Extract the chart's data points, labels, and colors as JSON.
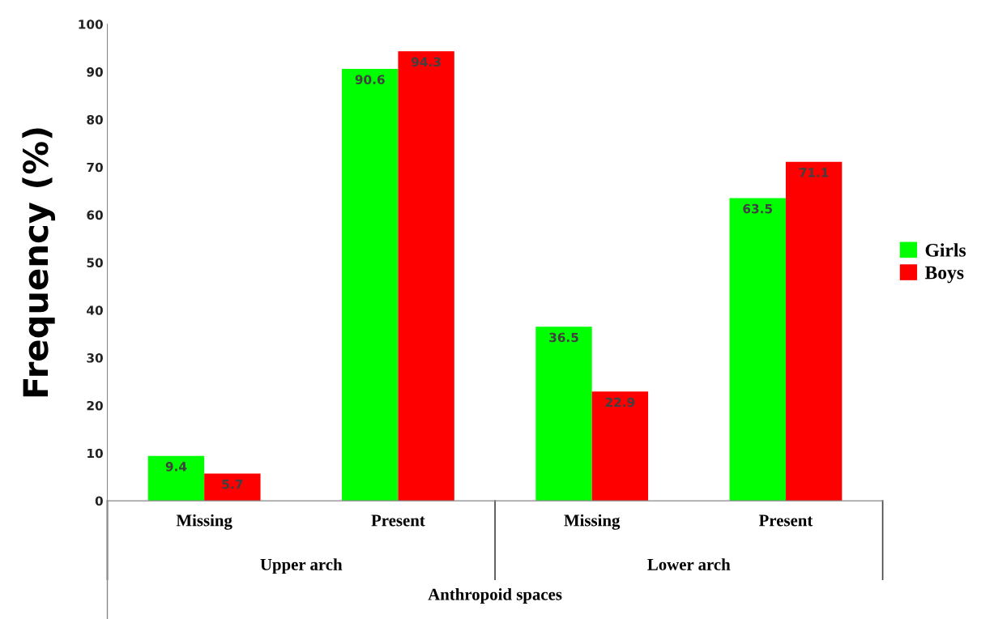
{
  "chart_data": {
    "type": "bar",
    "xlabel": "Anthropoid spaces",
    "ylabel": "Frequency (%)",
    "categories": [
      "Missing",
      "Present",
      "Missing",
      "Present"
    ],
    "annotations": [
      "Upper arch",
      "Lower arch"
    ],
    "series": [
      {
        "name": "Girls",
        "color": "#00ff00",
        "values": [
          9.4,
          90.6,
          36.5,
          63.5
        ]
      },
      {
        "name": "Boys",
        "color": "#ff0000",
        "values": [
          5.7,
          94.3,
          22.9,
          71.1
        ]
      }
    ],
    "ylim": [
      0,
      100
    ],
    "yticks": [
      0,
      10,
      20,
      30,
      40,
      50,
      60,
      70,
      80,
      90,
      100
    ],
    "grid": false,
    "legend": "right",
    "data_labels": true
  }
}
